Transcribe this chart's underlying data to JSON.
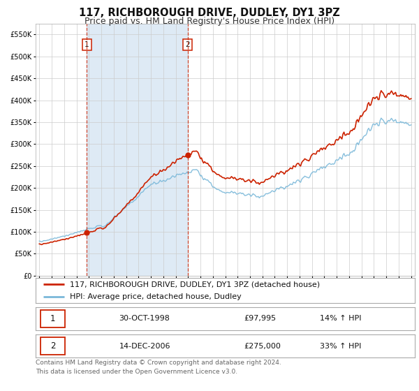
{
  "title": "117, RICHBOROUGH DRIVE, DUDLEY, DY1 3PZ",
  "subtitle": "Price paid vs. HM Land Registry's House Price Index (HPI)",
  "legend_line1": "117, RICHBOROUGH DRIVE, DUDLEY, DY1 3PZ (detached house)",
  "legend_line2": "HPI: Average price, detached house, Dudley",
  "footer1": "Contains HM Land Registry data © Crown copyright and database right 2024.",
  "footer2": "This data is licensed under the Open Government Licence v3.0.",
  "sale1_label": "1",
  "sale1_date": "30-OCT-1998",
  "sale1_price": "£97,995",
  "sale1_hpi": "14% ↑ HPI",
  "sale1_x": 1998.83,
  "sale1_y": 97995,
  "sale2_label": "2",
  "sale2_date": "14-DEC-2006",
  "sale2_price": "£275,000",
  "sale2_hpi": "33% ↑ HPI",
  "sale2_x": 2006.96,
  "sale2_y": 275000,
  "vline1_x": 1998.83,
  "vline2_x": 2006.96,
  "shade_start": 1998.83,
  "shade_end": 2006.96,
  "ylim": [
    0,
    575000
  ],
  "xlim_start": 1994.7,
  "xlim_end": 2025.3,
  "hpi_color": "#7ab8d9",
  "property_color": "#cc2200",
  "vline_color": "#cc2200",
  "shade_color": "#deeaf5",
  "background_color": "#ffffff",
  "grid_color": "#cccccc",
  "title_fontsize": 10.5,
  "subtitle_fontsize": 9,
  "axis_fontsize": 7.5,
  "legend_fontsize": 8,
  "footer_fontsize": 6.5
}
